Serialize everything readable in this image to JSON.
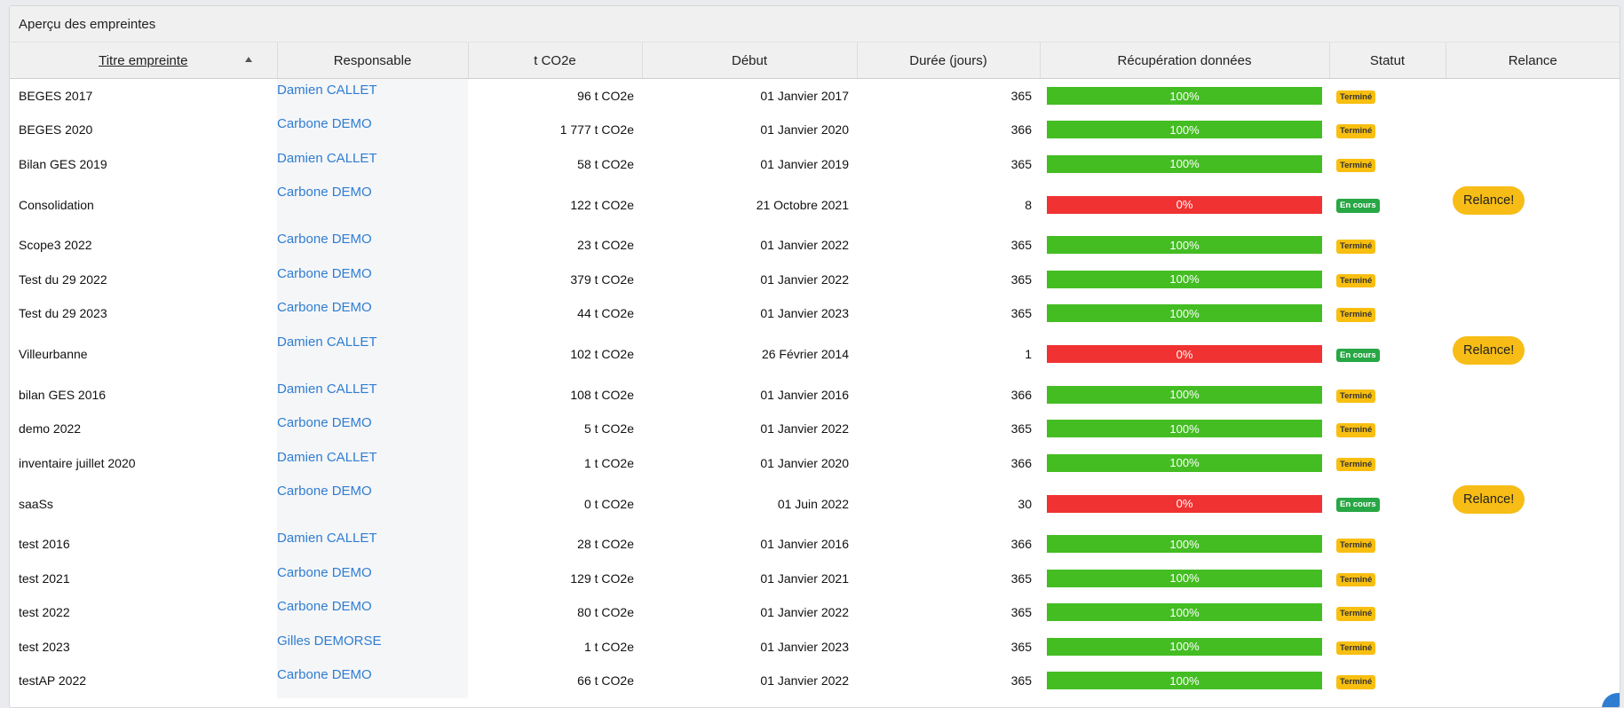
{
  "panel": {
    "title": "Aperçu des empreintes"
  },
  "columns": {
    "title": "Titre empreinte",
    "responsable": "Responsable",
    "co2": "t CO2e",
    "debut": "Début",
    "duree": "Durée (jours)",
    "recup": "Récupération données",
    "statut": "Statut",
    "relance": "Relance"
  },
  "colors": {
    "progress_complete": "#44bd23",
    "progress_empty": "#f03232",
    "status_done": "#f8bf11",
    "status_running": "#28a745",
    "link": "#2f7dd1",
    "relance_button": "#f7bd16"
  },
  "rows": [
    {
      "title": "BEGES 2017",
      "responsable": "Damien CALLET",
      "co2": "96 t CO2e",
      "debut": "01 Janvier 2017",
      "duree": "365",
      "progress": "100%",
      "statut": "Terminé",
      "relance": ""
    },
    {
      "title": "BEGES 2020",
      "responsable": "Carbone DEMO",
      "co2": "1 777 t CO2e",
      "debut": "01 Janvier 2020",
      "duree": "366",
      "progress": "100%",
      "statut": "Terminé",
      "relance": ""
    },
    {
      "title": "Bilan GES 2019",
      "responsable": "Damien CALLET",
      "co2": "58 t CO2e",
      "debut": "01 Janvier 2019",
      "duree": "365",
      "progress": "100%",
      "statut": "Terminé",
      "relance": ""
    },
    {
      "title": "Consolidation",
      "responsable": "Carbone DEMO",
      "co2": "122 t CO2e",
      "debut": "21 Octobre 2021",
      "duree": "8",
      "progress": "0%",
      "statut": "En cours",
      "relance": "Relance!"
    },
    {
      "title": "Scope3 2022",
      "responsable": "Carbone DEMO",
      "co2": "23 t CO2e",
      "debut": "01 Janvier 2022",
      "duree": "365",
      "progress": "100%",
      "statut": "Terminé",
      "relance": ""
    },
    {
      "title": "Test du 29 2022",
      "responsable": "Carbone DEMO",
      "co2": "379 t CO2e",
      "debut": "01 Janvier 2022",
      "duree": "365",
      "progress": "100%",
      "statut": "Terminé",
      "relance": ""
    },
    {
      "title": "Test du 29 2023",
      "responsable": "Carbone DEMO",
      "co2": "44 t CO2e",
      "debut": "01 Janvier 2023",
      "duree": "365",
      "progress": "100%",
      "statut": "Terminé",
      "relance": ""
    },
    {
      "title": "Villeurbanne",
      "responsable": "Damien CALLET",
      "co2": "102 t CO2e",
      "debut": "26 Février 2014",
      "duree": "1",
      "progress": "0%",
      "statut": "En cours",
      "relance": "Relance!"
    },
    {
      "title": "bilan GES 2016",
      "responsable": "Damien CALLET",
      "co2": "108 t CO2e",
      "debut": "01 Janvier 2016",
      "duree": "366",
      "progress": "100%",
      "statut": "Terminé",
      "relance": ""
    },
    {
      "title": "demo 2022",
      "responsable": "Carbone DEMO",
      "co2": "5 t CO2e",
      "debut": "01 Janvier 2022",
      "duree": "365",
      "progress": "100%",
      "statut": "Terminé",
      "relance": ""
    },
    {
      "title": "inventaire juillet 2020",
      "responsable": "Damien CALLET",
      "co2": "1 t CO2e",
      "debut": "01 Janvier 2020",
      "duree": "366",
      "progress": "100%",
      "statut": "Terminé",
      "relance": ""
    },
    {
      "title": "saaSs",
      "responsable": "Carbone DEMO",
      "co2": "0 t CO2e",
      "debut": "01 Juin 2022",
      "duree": "30",
      "progress": "0%",
      "statut": "En cours",
      "relance": "Relance!"
    },
    {
      "title": "test 2016",
      "responsable": "Damien CALLET",
      "co2": "28 t CO2e",
      "debut": "01 Janvier 2016",
      "duree": "366",
      "progress": "100%",
      "statut": "Terminé",
      "relance": ""
    },
    {
      "title": "test 2021",
      "responsable": "Carbone DEMO",
      "co2": "129 t CO2e",
      "debut": "01 Janvier 2021",
      "duree": "365",
      "progress": "100%",
      "statut": "Terminé",
      "relance": ""
    },
    {
      "title": "test 2022",
      "responsable": "Carbone DEMO",
      "co2": "80 t CO2e",
      "debut": "01 Janvier 2022",
      "duree": "365",
      "progress": "100%",
      "statut": "Terminé",
      "relance": ""
    },
    {
      "title": "test 2023",
      "responsable": "Gilles DEMORSE",
      "co2": "1 t CO2e",
      "debut": "01 Janvier 2023",
      "duree": "365",
      "progress": "100%",
      "statut": "Terminé",
      "relance": ""
    },
    {
      "title": "testAP 2022",
      "responsable": "Carbone DEMO",
      "co2": "66 t CO2e",
      "debut": "01 Janvier 2022",
      "duree": "365",
      "progress": "100%",
      "statut": "Terminé",
      "relance": ""
    }
  ]
}
